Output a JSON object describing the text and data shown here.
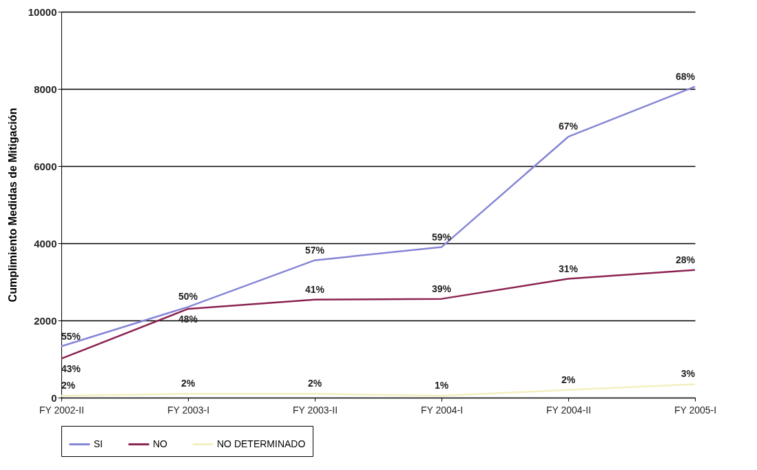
{
  "chart_data": {
    "type": "line",
    "ylabel": "Cumplimiento Medidas de Mitigación",
    "categories": [
      "FY 2002-II",
      "FY 2003-I",
      "FY 2003-II",
      "FY 2004-I",
      "FY 2004-II",
      "FY 2005-I"
    ],
    "ylim": [
      0,
      10000
    ],
    "yticks": [
      0,
      2000,
      4000,
      6000,
      8000,
      10000
    ],
    "grid": "y",
    "legend": "bottom",
    "line_style": "solid",
    "series": [
      {
        "name": "SI",
        "color": "#8585d6",
        "values": [
          1330,
          2350,
          3560,
          3900,
          6760,
          8060
        ]
      },
      {
        "name": "NO",
        "color": "#8b2252",
        "values": [
          1010,
          2300,
          2540,
          2560,
          3080,
          3310
        ]
      },
      {
        "name": "NO DETERMINADO",
        "color": "#f3efc0",
        "values": [
          50,
          100,
          100,
          50,
          200,
          350
        ]
      }
    ],
    "annotations": [
      {
        "text": "55%",
        "x": "FY 2002-II",
        "y": 1330
      },
      {
        "text": "50%",
        "x": "FY 2003-I",
        "y": 2350
      },
      {
        "text": "57%",
        "x": "FY 2003-II",
        "y": 3560
      },
      {
        "text": "59%",
        "x": "FY 2004-I",
        "y": 3900
      },
      {
        "text": "67%",
        "x": "FY 2004-II",
        "y": 6760
      },
      {
        "text": "68%",
        "x": "FY 2005-I",
        "y": 8060
      },
      {
        "text": "43%",
        "x": "FY 2002-II",
        "y": 1010
      },
      {
        "text": "48%",
        "x": "FY 2003-I",
        "y": 2300
      },
      {
        "text": "41%",
        "x": "FY 2003-II",
        "y": 2540
      },
      {
        "text": "39%",
        "x": "FY 2004-I",
        "y": 2560
      },
      {
        "text": "31%",
        "x": "FY 2004-II",
        "y": 3080
      },
      {
        "text": "28%",
        "x": "FY 2005-I",
        "y": 3310
      },
      {
        "text": "2%",
        "x": "FY 2002-II",
        "y": 50
      },
      {
        "text": "2%",
        "x": "FY 2003-I",
        "y": 100
      },
      {
        "text": "2%",
        "x": "FY 2003-II",
        "y": 100
      },
      {
        "text": "1%",
        "x": "FY 2004-I",
        "y": 50
      },
      {
        "text": "2%",
        "x": "FY 2004-II",
        "y": 200
      },
      {
        "text": "3%",
        "x": "FY 2005-I",
        "y": 350
      }
    ]
  }
}
